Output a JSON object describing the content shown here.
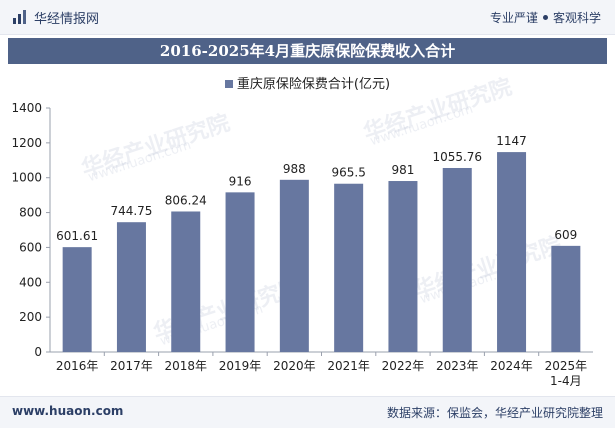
{
  "header": {
    "site_name": "华经情报网",
    "tagline_left": "专业严谨",
    "tagline_right": "客观科学"
  },
  "watermark": {
    "brand": "华经产业研究院",
    "url": "www.huaon.com"
  },
  "footer": {
    "url": "www.huaon.com",
    "source": "数据来源：保监会，华经产业研究院整理"
  },
  "colors": {
    "bar": "#6777a0",
    "title_band": "#4f6288",
    "brand_text": "#2c3f66"
  },
  "chart_data": {
    "type": "bar",
    "title": "2016-2025年4月重庆原保险保费收入合计",
    "legend_position": "top-center",
    "grid": false,
    "categories": [
      "2016年",
      "2017年",
      "2018年",
      "2019年",
      "2020年",
      "2021年",
      "2022年",
      "2023年",
      "2024年",
      "2025年\n1-4月"
    ],
    "series": [
      {
        "name": "重庆原保险保费合计(亿元)",
        "values": [
          601.61,
          744.75,
          806.24,
          916,
          988,
          965.5,
          981,
          1055.76,
          1147,
          609
        ],
        "labels": [
          "601.61",
          "744.75",
          "806.24",
          "916",
          "988",
          "965.5",
          "981",
          "1055.76",
          "1147",
          "609"
        ]
      }
    ],
    "ylim": [
      0,
      1400
    ],
    "yticks": [
      0,
      200,
      400,
      600,
      800,
      1000,
      1200,
      1400
    ],
    "xlabel": "",
    "ylabel": ""
  }
}
